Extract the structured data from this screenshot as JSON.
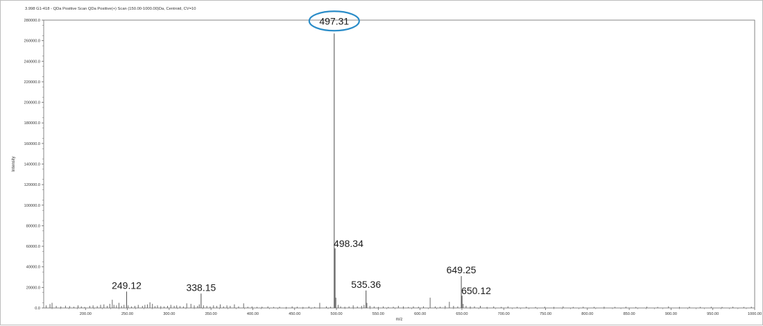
{
  "chart_data": {
    "type": "bar",
    "title": "3.998 G1-418 - QDa Positive Scan QDa Positive(+) Scan (150.00-1000.00)Da, Centroid, CV=10",
    "xlabel": "m/z",
    "ylabel": "Intensity",
    "xlim": [
      150.0,
      1000.0
    ],
    "ylim": [
      0,
      280000
    ],
    "x_ticks": [
      "200.00",
      "250.00",
      "300.00",
      "350.00",
      "400.00",
      "450.00",
      "500.00",
      "550.00",
      "600.00",
      "650.00",
      "700.00",
      "750.00",
      "800.00",
      "850.00",
      "900.00",
      "950.00",
      "1000.00"
    ],
    "y_ticks": [
      "0.0",
      "20000.0",
      "40000.0",
      "60000.0",
      "80000.0",
      "100000.0",
      "120000.0",
      "140000.0",
      "160000.0",
      "180000.0",
      "200000.0",
      "220000.0",
      "240000.0",
      "260000.0",
      "280000.0"
    ],
    "grid": false,
    "labeled_peaks": [
      {
        "mz": 249.12,
        "intensity": 16000,
        "label": "249.12"
      },
      {
        "mz": 338.15,
        "intensity": 14000,
        "label": "338.15"
      },
      {
        "mz": 497.31,
        "intensity": 267000,
        "label": "497.31",
        "highlighted": true
      },
      {
        "mz": 498.34,
        "intensity": 58000,
        "label": "498.34"
      },
      {
        "mz": 535.36,
        "intensity": 17000,
        "label": "535.36"
      },
      {
        "mz": 649.25,
        "intensity": 31000,
        "label": "649.25"
      },
      {
        "mz": 650.12,
        "intensity": 12000,
        "label": "650.12"
      }
    ],
    "minor_peaks": [
      {
        "mz": 153.0,
        "intensity": 2500
      },
      {
        "mz": 157.5,
        "intensity": 3800
      },
      {
        "mz": 160.0,
        "intensity": 5000
      },
      {
        "mz": 165.0,
        "intensity": 2000
      },
      {
        "mz": 170.5,
        "intensity": 1500
      },
      {
        "mz": 176.0,
        "intensity": 2200
      },
      {
        "mz": 181.0,
        "intensity": 1800
      },
      {
        "mz": 186.0,
        "intensity": 1200
      },
      {
        "mz": 191.0,
        "intensity": 2500
      },
      {
        "mz": 195.0,
        "intensity": 1500
      },
      {
        "mz": 199.0,
        "intensity": 1000
      },
      {
        "mz": 205.0,
        "intensity": 2000
      },
      {
        "mz": 209.0,
        "intensity": 2500
      },
      {
        "mz": 214.0,
        "intensity": 1800
      },
      {
        "mz": 218.0,
        "intensity": 3000
      },
      {
        "mz": 222.0,
        "intensity": 3500
      },
      {
        "mz": 226.0,
        "intensity": 2000
      },
      {
        "mz": 229.0,
        "intensity": 4000
      },
      {
        "mz": 232.0,
        "intensity": 8000
      },
      {
        "mz": 234.0,
        "intensity": 3000
      },
      {
        "mz": 237.0,
        "intensity": 2500
      },
      {
        "mz": 240.0,
        "intensity": 5000
      },
      {
        "mz": 243.0,
        "intensity": 2000
      },
      {
        "mz": 246.0,
        "intensity": 3000
      },
      {
        "mz": 251.0,
        "intensity": 2500
      },
      {
        "mz": 255.0,
        "intensity": 1500
      },
      {
        "mz": 259.0,
        "intensity": 2000
      },
      {
        "mz": 263.0,
        "intensity": 3000
      },
      {
        "mz": 268.0,
        "intensity": 2000
      },
      {
        "mz": 271.0,
        "intensity": 3000
      },
      {
        "mz": 274.0,
        "intensity": 3500
      },
      {
        "mz": 277.0,
        "intensity": 5500
      },
      {
        "mz": 280.0,
        "intensity": 4000
      },
      {
        "mz": 283.0,
        "intensity": 1800
      },
      {
        "mz": 286.0,
        "intensity": 2500
      },
      {
        "mz": 290.0,
        "intensity": 1800
      },
      {
        "mz": 294.0,
        "intensity": 1500
      },
      {
        "mz": 298.0,
        "intensity": 2000
      },
      {
        "mz": 302.0,
        "intensity": 3000
      },
      {
        "mz": 306.0,
        "intensity": 2000
      },
      {
        "mz": 309.0,
        "intensity": 2500
      },
      {
        "mz": 313.0,
        "intensity": 1800
      },
      {
        "mz": 317.0,
        "intensity": 1500
      },
      {
        "mz": 321.0,
        "intensity": 4500
      },
      {
        "mz": 326.0,
        "intensity": 4000
      },
      {
        "mz": 330.0,
        "intensity": 2500
      },
      {
        "mz": 334.0,
        "intensity": 2000
      },
      {
        "mz": 336.0,
        "intensity": 3500
      },
      {
        "mz": 341.0,
        "intensity": 2500
      },
      {
        "mz": 345.0,
        "intensity": 2000
      },
      {
        "mz": 349.0,
        "intensity": 1500
      },
      {
        "mz": 353.0,
        "intensity": 2500
      },
      {
        "mz": 357.0,
        "intensity": 2000
      },
      {
        "mz": 361.0,
        "intensity": 3500
      },
      {
        "mz": 365.0,
        "intensity": 1500
      },
      {
        "mz": 369.0,
        "intensity": 2500
      },
      {
        "mz": 373.0,
        "intensity": 2000
      },
      {
        "mz": 378.0,
        "intensity": 3500
      },
      {
        "mz": 383.0,
        "intensity": 1500
      },
      {
        "mz": 389.0,
        "intensity": 4500
      },
      {
        "mz": 394.0,
        "intensity": 1200
      },
      {
        "mz": 399.0,
        "intensity": 1500
      },
      {
        "mz": 405.0,
        "intensity": 1000
      },
      {
        "mz": 411.0,
        "intensity": 1200
      },
      {
        "mz": 418.0,
        "intensity": 1500
      },
      {
        "mz": 425.0,
        "intensity": 1000
      },
      {
        "mz": 432.0,
        "intensity": 1200
      },
      {
        "mz": 440.0,
        "intensity": 1000
      },
      {
        "mz": 447.0,
        "intensity": 1500
      },
      {
        "mz": 453.0,
        "intensity": 1200
      },
      {
        "mz": 460.0,
        "intensity": 1000
      },
      {
        "mz": 467.0,
        "intensity": 1500
      },
      {
        "mz": 474.0,
        "intensity": 1000
      },
      {
        "mz": 480.0,
        "intensity": 5000
      },
      {
        "mz": 488.0,
        "intensity": 1500
      },
      {
        "mz": 493.0,
        "intensity": 1200
      },
      {
        "mz": 499.3,
        "intensity": 10000
      },
      {
        "mz": 502.0,
        "intensity": 3000
      },
      {
        "mz": 505.0,
        "intensity": 1500
      },
      {
        "mz": 510.0,
        "intensity": 1200
      },
      {
        "mz": 515.0,
        "intensity": 1500
      },
      {
        "mz": 520.0,
        "intensity": 2500
      },
      {
        "mz": 525.0,
        "intensity": 1500
      },
      {
        "mz": 530.0,
        "intensity": 2000
      },
      {
        "mz": 533.0,
        "intensity": 3000
      },
      {
        "mz": 536.4,
        "intensity": 5000
      },
      {
        "mz": 540.0,
        "intensity": 2000
      },
      {
        "mz": 545.0,
        "intensity": 1500
      },
      {
        "mz": 550.0,
        "intensity": 1000
      },
      {
        "mz": 556.0,
        "intensity": 1500
      },
      {
        "mz": 562.0,
        "intensity": 1000
      },
      {
        "mz": 568.0,
        "intensity": 1200
      },
      {
        "mz": 574.0,
        "intensity": 2000
      },
      {
        "mz": 580.0,
        "intensity": 1500
      },
      {
        "mz": 586.0,
        "intensity": 1000
      },
      {
        "mz": 592.0,
        "intensity": 1500
      },
      {
        "mz": 598.0,
        "intensity": 1200
      },
      {
        "mz": 604.0,
        "intensity": 1500
      },
      {
        "mz": 612.0,
        "intensity": 10000
      },
      {
        "mz": 618.0,
        "intensity": 1500
      },
      {
        "mz": 624.0,
        "intensity": 1200
      },
      {
        "mz": 630.0,
        "intensity": 2000
      },
      {
        "mz": 635.0,
        "intensity": 6000
      },
      {
        "mz": 640.0,
        "intensity": 2000
      },
      {
        "mz": 645.0,
        "intensity": 1500
      },
      {
        "mz": 651.5,
        "intensity": 4000
      },
      {
        "mz": 655.0,
        "intensity": 2000
      },
      {
        "mz": 660.0,
        "intensity": 1500
      },
      {
        "mz": 665.0,
        "intensity": 1500
      },
      {
        "mz": 672.0,
        "intensity": 2000
      },
      {
        "mz": 680.0,
        "intensity": 1000
      },
      {
        "mz": 688.0,
        "intensity": 1500
      },
      {
        "mz": 697.0,
        "intensity": 1000
      },
      {
        "mz": 705.0,
        "intensity": 1500
      },
      {
        "mz": 716.0,
        "intensity": 1000
      },
      {
        "mz": 727.0,
        "intensity": 1200
      },
      {
        "mz": 738.0,
        "intensity": 1000
      },
      {
        "mz": 749.0,
        "intensity": 1200
      },
      {
        "mz": 760.0,
        "intensity": 1000
      },
      {
        "mz": 771.0,
        "intensity": 1500
      },
      {
        "mz": 783.0,
        "intensity": 1000
      },
      {
        "mz": 795.0,
        "intensity": 1200
      },
      {
        "mz": 808.0,
        "intensity": 1000
      },
      {
        "mz": 820.0,
        "intensity": 1200
      },
      {
        "mz": 833.0,
        "intensity": 1000
      },
      {
        "mz": 846.0,
        "intensity": 1200
      },
      {
        "mz": 858.0,
        "intensity": 1000
      },
      {
        "mz": 871.0,
        "intensity": 1200
      },
      {
        "mz": 884.0,
        "intensity": 1000
      },
      {
        "mz": 897.0,
        "intensity": 1500
      },
      {
        "mz": 910.0,
        "intensity": 1000
      },
      {
        "mz": 922.0,
        "intensity": 1200
      },
      {
        "mz": 935.0,
        "intensity": 1000
      },
      {
        "mz": 948.0,
        "intensity": 1200
      },
      {
        "mz": 961.0,
        "intensity": 1000
      },
      {
        "mz": 974.0,
        "intensity": 1200
      },
      {
        "mz": 987.0,
        "intensity": 1000
      },
      {
        "mz": 996.0,
        "intensity": 1200
      }
    ]
  },
  "colors": {
    "highlight_ellipse": "#2a8cc8",
    "peak_line": "#5a5a5a",
    "axis": "#666666",
    "frame": "#bdbdbd"
  }
}
